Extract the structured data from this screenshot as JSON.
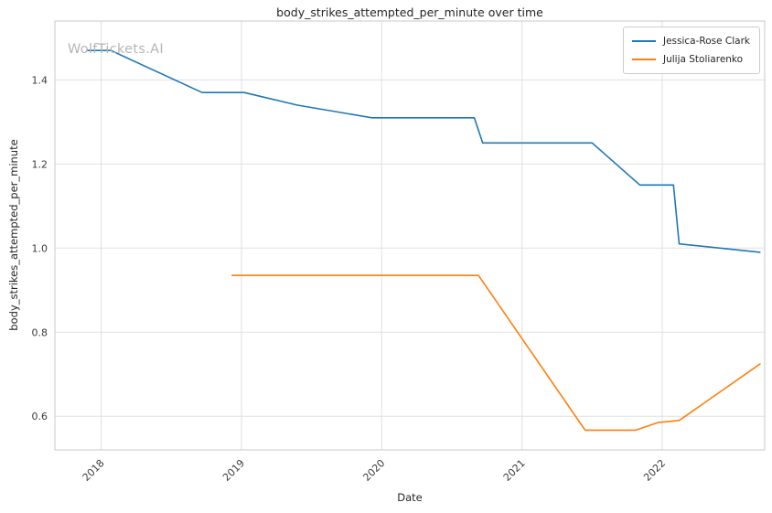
{
  "chart_data": {
    "type": "line",
    "title": "body_strikes_attempted_per_minute over time",
    "xlabel": "Date",
    "ylabel": "body_strikes_attempted_per_minute",
    "watermark": "WolfTickets.AI",
    "grid": true,
    "legend_position": "upper right",
    "xlim": [
      2017.67,
      2022.73
    ],
    "ylim": [
      0.52,
      1.54
    ],
    "x_ticks": [
      2018,
      2019,
      2020,
      2021,
      2022
    ],
    "x_tick_labels": [
      "2018",
      "2019",
      "2020",
      "2021",
      "2022"
    ],
    "y_ticks": [
      0.6,
      0.8,
      1.0,
      1.2,
      1.4
    ],
    "y_tick_labels": [
      "0.6",
      "0.8",
      "1.0",
      "1.2",
      "1.4"
    ],
    "colors": {
      "grid": "#e0e0e0",
      "spine": "#c8c8c8",
      "tick_text": "#3b3b3b",
      "title_text": "#262626",
      "watermark": "#b5b5b5"
    },
    "series": [
      {
        "name": "Jessica-Rose Clark",
        "color": "#1f77b4",
        "x": [
          2017.9,
          2018.07,
          2018.72,
          2019.02,
          2019.4,
          2019.93,
          2020.66,
          2020.72,
          2021.5,
          2021.84,
          2022.08,
          2022.12,
          2022.7
        ],
        "y": [
          1.47,
          1.47,
          1.37,
          1.37,
          1.34,
          1.31,
          1.31,
          1.25,
          1.25,
          1.15,
          1.15,
          1.01,
          0.99
        ]
      },
      {
        "name": "Julija Stoliarenko",
        "color": "#ff7f0e",
        "x": [
          2018.93,
          2020.69,
          2021.45,
          2021.81,
          2021.97,
          2022.12,
          2022.7
        ],
        "y": [
          0.935,
          0.935,
          0.567,
          0.567,
          0.585,
          0.59,
          0.725
        ]
      }
    ]
  }
}
